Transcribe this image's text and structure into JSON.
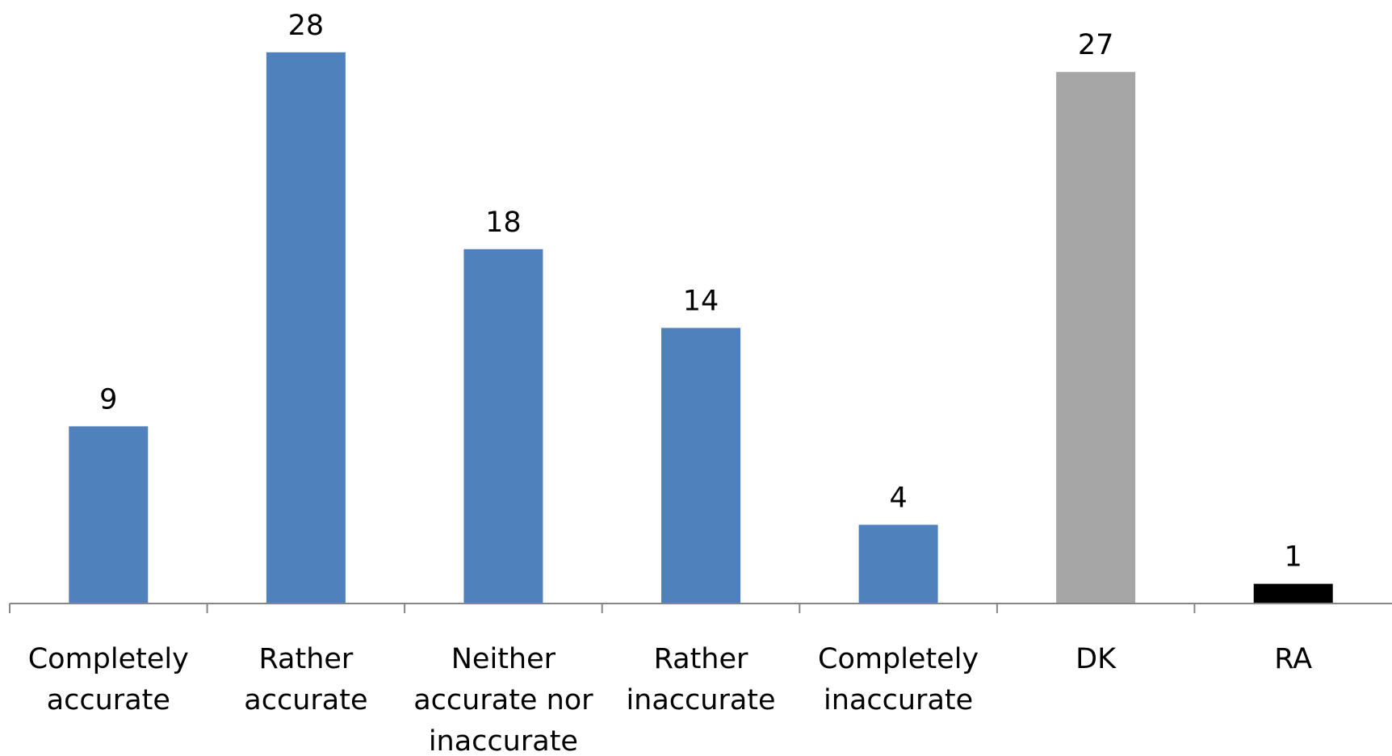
{
  "chart_data": {
    "type": "bar",
    "categories": [
      [
        "Completely",
        "accurate"
      ],
      [
        "Rather",
        "accurate"
      ],
      [
        "Neither",
        "accurate nor",
        "inaccurate"
      ],
      [
        "Rather",
        "inaccurate"
      ],
      [
        "Completely",
        "inaccurate"
      ],
      [
        "DK"
      ],
      [
        "RA"
      ]
    ],
    "values": [
      9,
      28,
      18,
      14,
      4,
      27,
      1
    ],
    "data_labels": [
      "9",
      "28",
      "18",
      "14",
      "4",
      "27",
      "1"
    ],
    "bar_colors": [
      "#4f81bd",
      "#4f81bd",
      "#4f81bd",
      "#4f81bd",
      "#4f81bd",
      "#a6a6a6",
      "#000000"
    ],
    "axis_color": "#868686",
    "ylim": [
      0,
      30
    ],
    "grid": false,
    "legend": "none"
  }
}
